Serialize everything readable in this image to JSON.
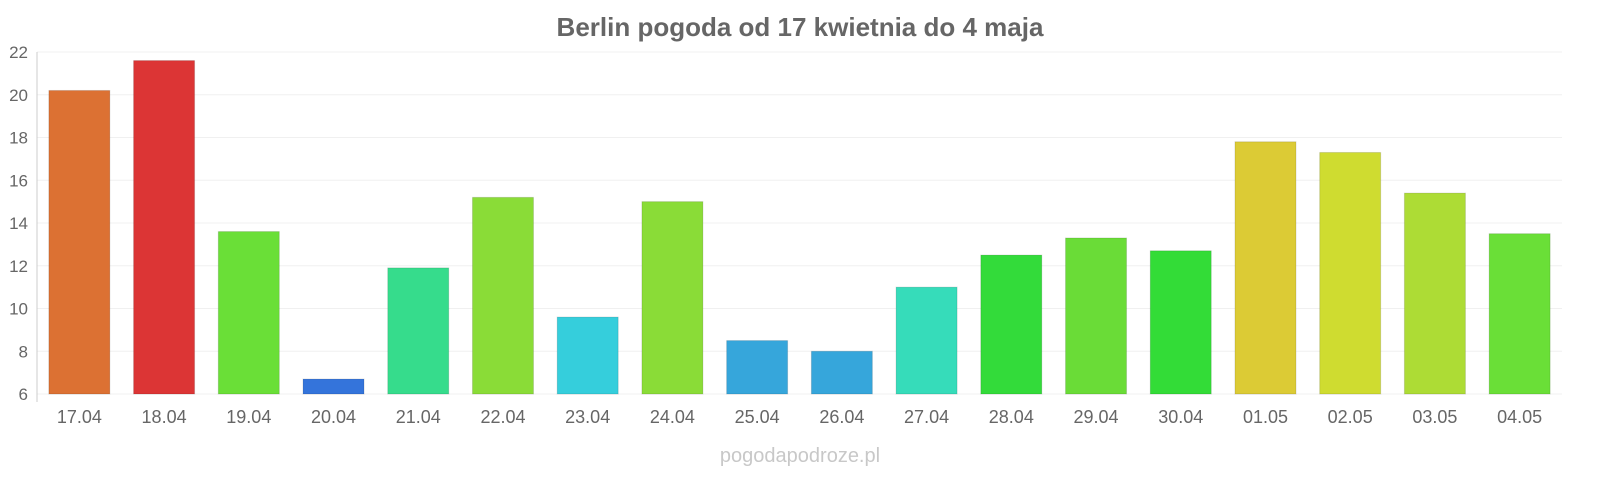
{
  "chart_data": {
    "type": "bar",
    "title": "Berlin pogoda od 17 kwietnia do 4 maja",
    "xlabel": "",
    "ylabel": "",
    "ylim": [
      6,
      22
    ],
    "yticks": [
      6,
      8,
      10,
      12,
      14,
      16,
      18,
      20,
      22
    ],
    "grid": true,
    "categories": [
      "17.04",
      "18.04",
      "19.04",
      "20.04",
      "21.04",
      "22.04",
      "23.04",
      "24.04",
      "25.04",
      "26.04",
      "27.04",
      "28.04",
      "29.04",
      "30.04",
      "01.05",
      "02.05",
      "03.05",
      "04.05"
    ],
    "values": [
      20.2,
      21.6,
      13.6,
      6.7,
      11.9,
      15.2,
      9.6,
      15.0,
      8.5,
      8.0,
      11.0,
      12.5,
      13.3,
      12.7,
      17.8,
      17.3,
      15.4,
      13.5
    ],
    "colors": [
      "#dc7133",
      "#dc3535",
      "#6adf37",
      "#3474db",
      "#36dc8c",
      "#8adc37",
      "#35cedc",
      "#8adc37",
      "#36a6db",
      "#36a6db",
      "#36dcba",
      "#33db3a",
      "#6adc37",
      "#33dc37",
      "#dccb35",
      "#cfdc30",
      "#addc35",
      "#6adf37"
    ]
  },
  "watermark": "pogodapodroze.pl"
}
